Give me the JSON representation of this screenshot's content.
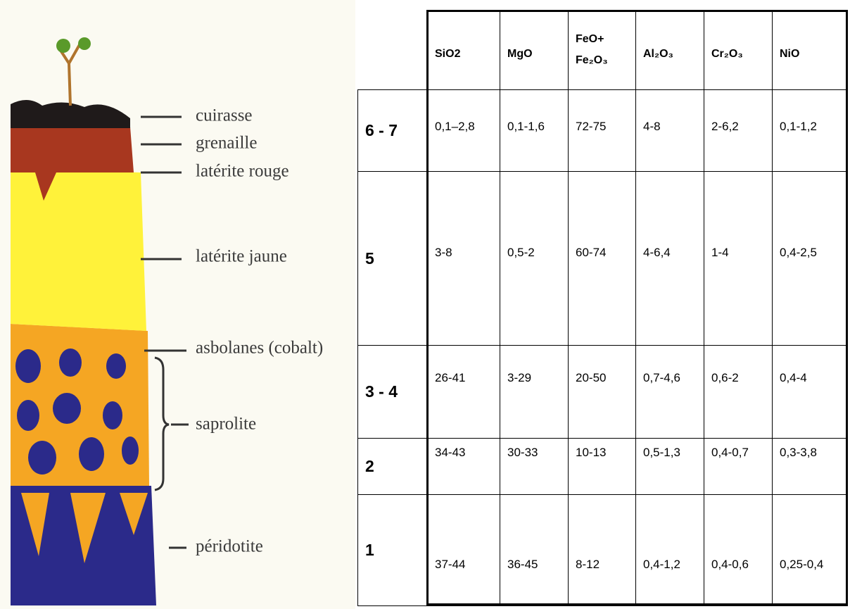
{
  "profile": {
    "labels": [
      "cuirasse",
      "grenaille",
      "latérite rouge",
      "latérite jaune",
      "asbolanes (cobalt)",
      "saprolite",
      "péridotite"
    ]
  },
  "table": {
    "header": [
      "SiO2",
      "MgO",
      [
        "FeO+",
        "Fe₂O₃"
      ],
      "Al₂O₃",
      "Cr₂O₃",
      "NiO"
    ],
    "rows": [
      {
        "label": "6 - 7",
        "cells": [
          "0,1–2,8",
          "0,1-1,6",
          "72-75",
          "4-8",
          "2-6,2",
          "0,1-1,2"
        ]
      },
      {
        "label": "5",
        "cells": [
          "3-8",
          "0,5-2",
          "60-74",
          "4-6,4",
          "1-4",
          "0,4-2,5"
        ]
      },
      {
        "label": "3 - 4",
        "cells": [
          "26-41",
          "3-29",
          "20-50",
          "0,7-4,6",
          "0,6-2",
          "0,4-4"
        ]
      },
      {
        "label": "2",
        "cells": [
          "34-43",
          "30-33",
          "10-13",
          "0,5-1,3",
          "0,4-0,7",
          "0,3-3,8"
        ]
      },
      {
        "label": "1",
        "cells": [
          "37-44",
          "36-45",
          "8-12",
          "0,4-1,2",
          "0,4-0,6",
          "0,25-0,4"
        ]
      }
    ]
  }
}
